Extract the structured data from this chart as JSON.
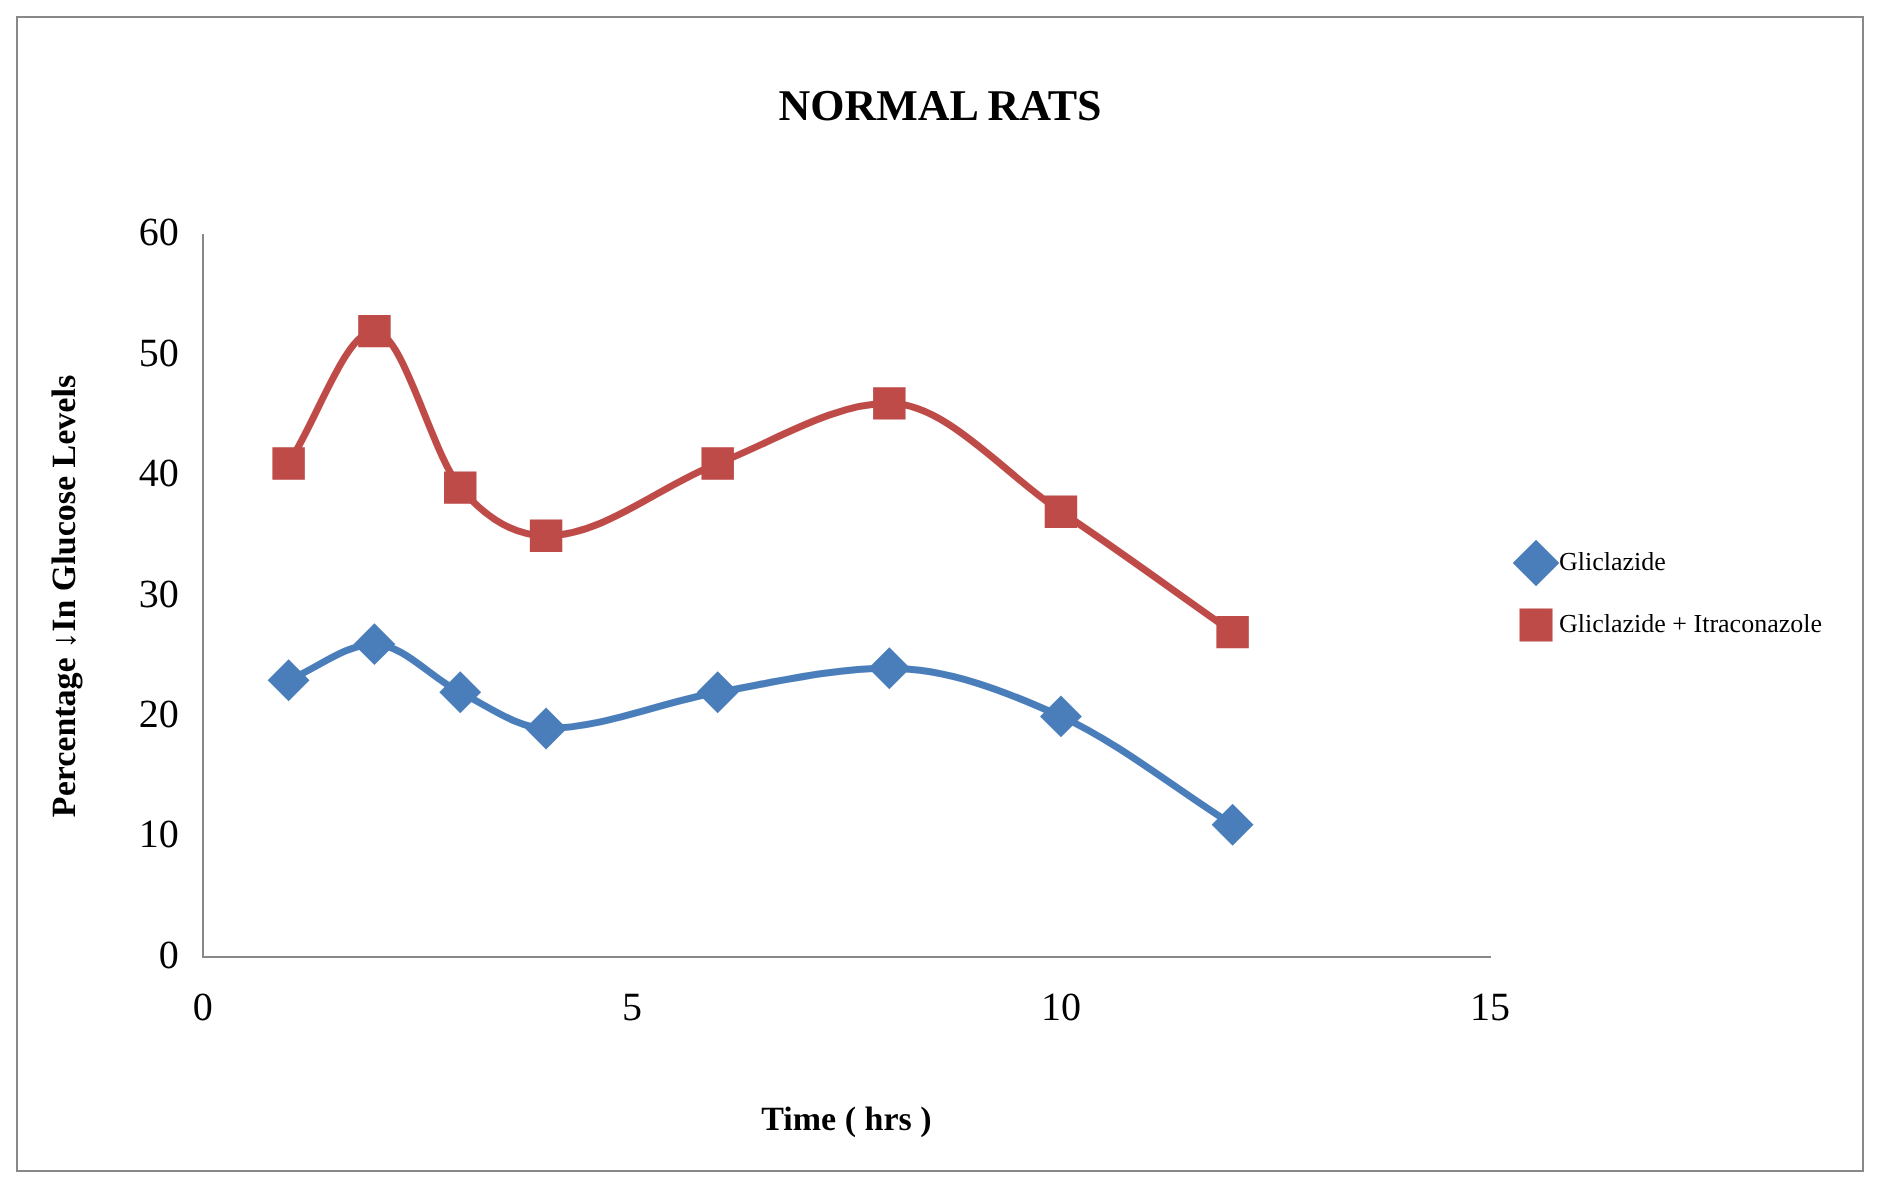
{
  "chart_data": {
    "type": "line",
    "title": "NORMAL RATS",
    "xlabel": "Time ( hrs )",
    "ylabel": "Percentage ↓In Glucose Levels",
    "x": [
      1,
      2,
      3,
      4,
      6,
      8,
      10,
      12
    ],
    "series": [
      {
        "name": "Gliclazide",
        "color": "#4a7ebb",
        "marker": "diamond",
        "values": [
          23,
          26,
          22,
          19,
          22,
          24,
          20,
          11
        ]
      },
      {
        "name": "Gliclazide + Itraconazole",
        "color": "#be4b48",
        "marker": "square",
        "values": [
          41,
          52,
          39,
          35,
          41,
          46,
          37,
          27
        ]
      }
    ],
    "xlim": [
      0,
      15
    ],
    "xticks": [
      0,
      5,
      10,
      15
    ],
    "ylim": [
      0,
      60
    ],
    "yticks": [
      0,
      10,
      20,
      30,
      40,
      50,
      60
    ],
    "grid": false,
    "legend": "right",
    "line_style": "solid"
  }
}
